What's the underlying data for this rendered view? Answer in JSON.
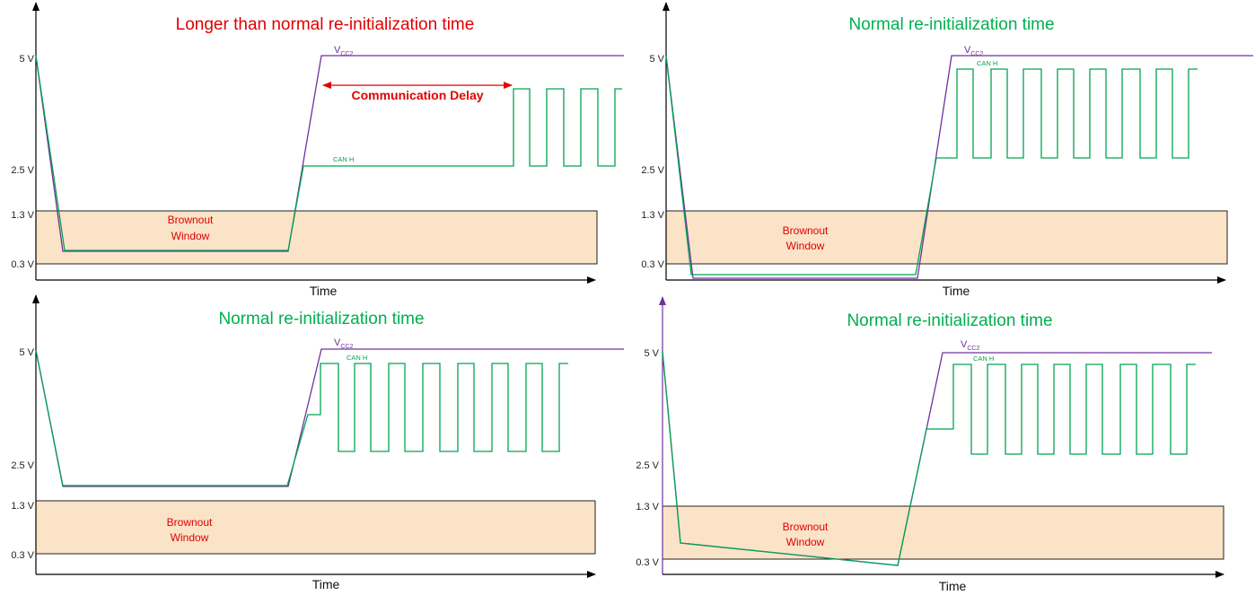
{
  "colors": {
    "vcc": "#7030a0",
    "canh": "#00a550",
    "title_red": "#e00000",
    "title_green": "#00b050",
    "brownout_fill": "#fbe3c8",
    "brownout_text": "#e00000",
    "delay_arrow": "#e00000"
  },
  "panels": [
    {
      "id": "top-left",
      "title": "Longer than normal re-initialization time",
      "title_color": "red",
      "y_labels": {
        "v5": "5 V",
        "v2_5": "2.5 V",
        "v1_3": "1.3 V",
        "v0_3": "0.3 V"
      },
      "x_label": "Time",
      "brownout_line1": "Brownout",
      "brownout_line2": "Window",
      "vcc_label_main": "V",
      "vcc_label_sub": "CC2",
      "canh_label": "CAN H",
      "delay_label": "Communication Delay"
    },
    {
      "id": "top-right",
      "title": "Normal re-initialization time",
      "title_color": "green",
      "y_labels": {
        "v5": "5 V",
        "v2_5": "2.5 V",
        "v1_3": "1.3 V",
        "v0_3": "0.3 V"
      },
      "x_label": "Time",
      "brownout_line1": "Brownout",
      "brownout_line2": "Window",
      "vcc_label_main": "V",
      "vcc_label_sub": "CC2",
      "canh_label": "CAN H"
    },
    {
      "id": "bottom-left",
      "title": "Normal re-initialization time",
      "title_color": "green",
      "y_labels": {
        "v5": "5 V",
        "v2_5": "2.5 V",
        "v1_3": "1.3 V",
        "v0_3": "0.3 V"
      },
      "x_label": "Time",
      "brownout_line1": "Brownout",
      "brownout_line2": "Window",
      "vcc_label_main": "V",
      "vcc_label_sub": "CC2",
      "canh_label": "CAN H"
    },
    {
      "id": "bottom-right",
      "title": "Normal re-initialization time",
      "title_color": "green",
      "y_labels": {
        "v5": "5 V",
        "v2_5": "2.5 V",
        "v1_3": "1.3 V",
        "v0_3": "0.3 V"
      },
      "x_label": "Time",
      "brownout_line1": "Brownout",
      "brownout_line2": "Window",
      "vcc_label_main": "V",
      "vcc_label_sub": "CC2",
      "canh_label": "CAN H"
    }
  ]
}
